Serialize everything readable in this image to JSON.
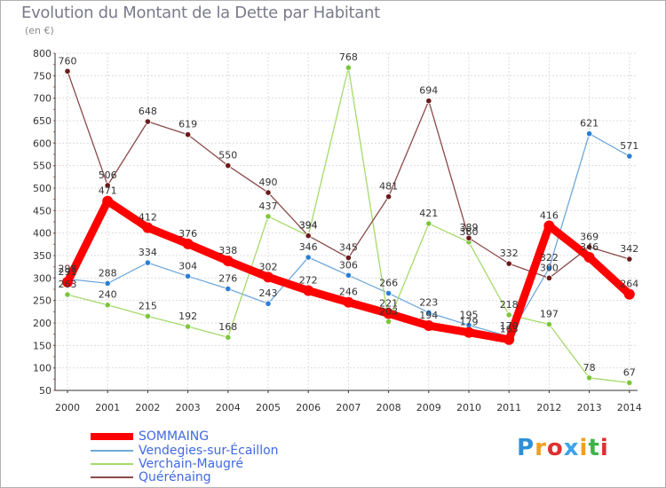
{
  "title": "Evolution du Montant de la Dette par Habitant",
  "subtitle": "(en €)",
  "logo": {
    "text": "Proxiti",
    "letter_colors": [
      "#2e8fd8",
      "#f0a020",
      "#e03030",
      "#3da3e8",
      "#f0a020",
      "#3db34a",
      "#e03030"
    ]
  },
  "chart_data": {
    "type": "line",
    "x": [
      2000,
      2001,
      2002,
      2003,
      2004,
      2005,
      2006,
      2007,
      2008,
      2009,
      2010,
      2011,
      2012,
      2013,
      2014
    ],
    "ylim": [
      50,
      800
    ],
    "yticks": [
      50,
      100,
      150,
      200,
      250,
      300,
      350,
      400,
      450,
      500,
      550,
      600,
      650,
      700,
      750,
      800
    ],
    "grid": true,
    "legend_position": "bottom-left",
    "title": "Evolution du Montant de la Dette par Habitant",
    "ylabel": "(en €)",
    "series": [
      {
        "name": "SOMMAING",
        "color": "#ff0000",
        "marker": "#ff0000",
        "values": [
          291,
          471,
          412,
          376,
          338,
          302,
          272,
          246,
          221,
          194,
          179,
          163,
          416,
          346,
          264
        ],
        "labels": [
          "291",
          "471",
          "412",
          "376",
          "338",
          "302",
          "272",
          "246",
          "221",
          "194",
          "179",
          "163",
          "416",
          "346",
          "264"
        ]
      },
      {
        "name": "Vendegies-sur-Écaillon",
        "color": "#6fa8dc",
        "marker": "#2a7fd4",
        "values": [
          298,
          288,
          334,
          304,
          276,
          243,
          346,
          306,
          266,
          223,
          195,
          170,
          322,
          621,
          571
        ],
        "labels": [
          "298",
          "288",
          "334",
          "304",
          "276",
          "243",
          "346",
          "306",
          "266",
          "223",
          "195",
          "170",
          "322",
          "621",
          "571"
        ]
      },
      {
        "name": "Verchain-Maugré",
        "color": "#a6d96a",
        "marker": "#7dc73d",
        "values": [
          263,
          240,
          215,
          192,
          168,
          437,
          394,
          768,
          203,
          421,
          380,
          218,
          197,
          78,
          67
        ],
        "labels": [
          "263",
          "240",
          "215",
          "192",
          "168",
          "437",
          "394",
          "768",
          "203",
          "421",
          "380",
          "218",
          "197",
          "78",
          "67"
        ]
      },
      {
        "name": "Quérénaing",
        "color": "#8b4a4a",
        "marker": "#6b1a1a",
        "values": [
          760,
          506,
          648,
          619,
          550,
          490,
          394,
          345,
          481,
          694,
          389,
          332,
          300,
          369,
          342
        ],
        "labels": [
          "760",
          "506",
          "648",
          "619",
          "550",
          "490",
          "394",
          "345",
          "481",
          "694",
          "389",
          "332",
          "300",
          "369",
          "342"
        ]
      }
    ]
  }
}
